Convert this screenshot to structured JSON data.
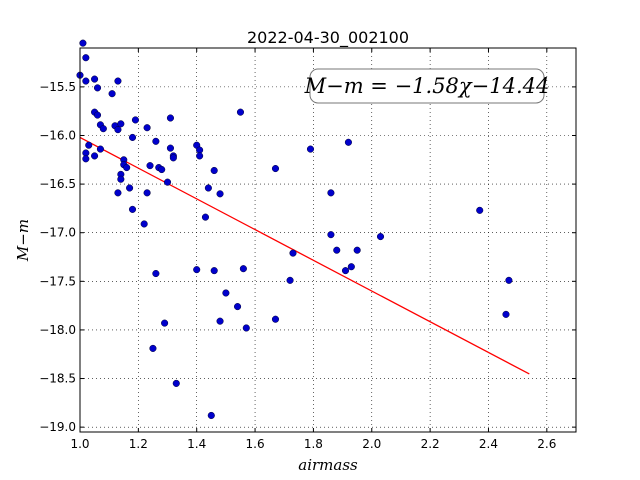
{
  "chart_data": {
    "type": "scatter",
    "title": "2022-04-30_002100",
    "xlabel": "airmass",
    "ylabel": "M−m",
    "xlim": [
      1.0,
      2.7
    ],
    "ylim": [
      -19.05,
      -15.1
    ],
    "x_ticks": [
      "1.0",
      "1.2",
      "1.4",
      "1.6",
      "1.8",
      "2.0",
      "2.2",
      "2.4",
      "2.6"
    ],
    "y_ticks": [
      "−15.5",
      "−16.0",
      "−16.5",
      "−17.0",
      "−17.5",
      "−18.0",
      "−18.5",
      "−19.0"
    ],
    "grid": true,
    "annotation": "M−m = −1.58χ−14.44",
    "fit": {
      "slope": -1.58,
      "intercept": -14.44,
      "x_range": [
        1.0,
        2.54
      ],
      "color": "#ff0000"
    },
    "point_color": "#0000cc",
    "points": [
      [
        1.0,
        -15.38
      ],
      [
        1.01,
        -15.05
      ],
      [
        1.02,
        -15.2
      ],
      [
        1.02,
        -15.44
      ],
      [
        1.05,
        -15.42
      ],
      [
        1.06,
        -15.51
      ],
      [
        1.05,
        -15.76
      ],
      [
        1.06,
        -15.79
      ],
      [
        1.07,
        -15.89
      ],
      [
        1.08,
        -15.93
      ],
      [
        1.11,
        -15.57
      ],
      [
        1.13,
        -15.44
      ],
      [
        1.12,
        -15.9
      ],
      [
        1.13,
        -15.94
      ],
      [
        1.14,
        -15.88
      ],
      [
        1.02,
        -16.18
      ],
      [
        1.02,
        -16.24
      ],
      [
        1.03,
        -16.1
      ],
      [
        1.05,
        -16.21
      ],
      [
        1.07,
        -16.14
      ],
      [
        1.15,
        -16.25
      ],
      [
        1.15,
        -16.3
      ],
      [
        1.16,
        -16.33
      ],
      [
        1.14,
        -16.4
      ],
      [
        1.14,
        -16.45
      ],
      [
        1.13,
        -16.59
      ],
      [
        1.17,
        -16.54
      ],
      [
        1.18,
        -16.76
      ],
      [
        1.18,
        -16.02
      ],
      [
        1.19,
        -15.84
      ],
      [
        1.23,
        -15.92
      ],
      [
        1.26,
        -16.06
      ],
      [
        1.24,
        -16.31
      ],
      [
        1.27,
        -16.33
      ],
      [
        1.28,
        -16.35
      ],
      [
        1.3,
        -16.48
      ],
      [
        1.23,
        -16.59
      ],
      [
        1.22,
        -16.91
      ],
      [
        1.31,
        -15.82
      ],
      [
        1.31,
        -16.13
      ],
      [
        1.32,
        -16.21
      ],
      [
        1.32,
        -16.23
      ],
      [
        1.4,
        -16.1
      ],
      [
        1.41,
        -16.15
      ],
      [
        1.41,
        -16.21
      ],
      [
        1.46,
        -16.36
      ],
      [
        1.44,
        -16.54
      ],
      [
        1.48,
        -16.6
      ],
      [
        1.43,
        -16.84
      ],
      [
        1.55,
        -15.76
      ],
      [
        1.26,
        -17.42
      ],
      [
        1.29,
        -17.93
      ],
      [
        1.25,
        -18.19
      ],
      [
        1.33,
        -18.55
      ],
      [
        1.4,
        -17.38
      ],
      [
        1.46,
        -17.39
      ],
      [
        1.5,
        -17.62
      ],
      [
        1.48,
        -17.91
      ],
      [
        1.54,
        -17.76
      ],
      [
        1.56,
        -17.37
      ],
      [
        1.57,
        -17.98
      ],
      [
        1.45,
        -18.88
      ],
      [
        1.67,
        -16.34
      ],
      [
        1.72,
        -17.49
      ],
      [
        1.73,
        -17.21
      ],
      [
        1.67,
        -17.89
      ],
      [
        1.79,
        -16.14
      ],
      [
        1.86,
        -16.59
      ],
      [
        1.86,
        -17.02
      ],
      [
        1.88,
        -17.18
      ],
      [
        1.92,
        -16.07
      ],
      [
        1.91,
        -17.39
      ],
      [
        1.93,
        -17.35
      ],
      [
        1.95,
        -17.18
      ],
      [
        2.03,
        -17.04
      ],
      [
        2.37,
        -16.77
      ],
      [
        2.47,
        -17.49
      ],
      [
        2.46,
        -17.84
      ]
    ]
  }
}
